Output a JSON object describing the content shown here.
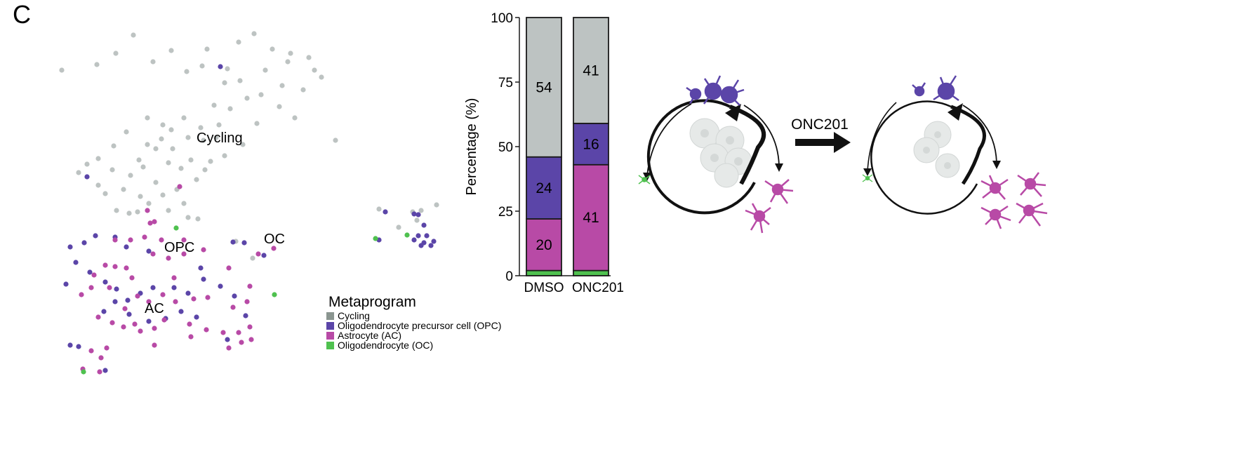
{
  "panel_letter": "C",
  "colors": {
    "cycling": "#bdc3c2",
    "opc": "#5b45a8",
    "ac": "#b84aa6",
    "oc": "#4fc14f",
    "legend_cycling": "#8a9590",
    "dark": "#1a1a1a"
  },
  "chart_data": [
    {
      "type": "scatter",
      "title": "",
      "xlabel": "",
      "ylabel": "",
      "cluster_labels": [
        "Cycling",
        "OPC",
        "OC",
        "AC"
      ],
      "legend": {
        "title": "Metaprogram",
        "items": [
          {
            "label": "Cycling",
            "key": "cycling"
          },
          {
            "label": "Oligodendrocyte precursor cell (OPC)",
            "key": "opc"
          },
          {
            "label": "Astrocyte (AC)",
            "key": "ac"
          },
          {
            "label": "Oligodendrocyte (OC)",
            "key": "oc"
          }
        ]
      },
      "series": [
        {
          "name": "Cycling",
          "key": "cycling",
          "points": [
            [
              88,
              100
            ],
            [
              138,
              92
            ],
            [
              165,
              76
            ],
            [
              190,
              50
            ],
            [
              218,
              88
            ],
            [
              244,
              72
            ],
            [
              266,
              102
            ],
            [
              295,
              70
            ],
            [
              340,
              60
            ],
            [
              362,
              48
            ],
            [
              388,
              70
            ],
            [
              410,
              88
            ],
            [
              440,
              82
            ],
            [
              458,
              110
            ],
            [
              372,
              135
            ],
            [
              342,
              115
            ],
            [
              398,
              152
            ],
            [
              420,
              168
            ],
            [
              328,
              155
            ],
            [
              305,
              150
            ],
            [
              478,
              200
            ],
            [
              312,
              178
            ],
            [
              262,
              168
            ],
            [
              244,
              185
            ],
            [
              230,
              198
            ],
            [
              210,
              206
            ],
            [
              198,
              228
            ],
            [
              186,
              250
            ],
            [
              222,
              212
            ],
            [
              246,
              212
            ],
            [
              268,
              196
            ],
            [
              290,
              200
            ],
            [
              300,
              230
            ],
            [
              280,
              256
            ],
            [
              258,
              240
            ],
            [
              240,
              232
            ],
            [
              222,
              260
            ],
            [
              200,
              280
            ],
            [
              176,
              270
            ],
            [
              160,
              242
            ],
            [
              140,
              226
            ],
            [
              124,
              234
            ],
            [
              112,
              246
            ],
            [
              150,
              276
            ],
            [
              166,
              300
            ],
            [
              184,
              304
            ],
            [
              212,
              290
            ],
            [
              240,
              300
            ],
            [
              262,
              290
            ],
            [
              180,
              188
            ],
            [
              210,
              168
            ],
            [
              162,
              208
            ],
            [
              140,
              264
            ],
            [
              196,
              302
            ],
            [
              232,
              278
            ],
            [
              268,
              310
            ],
            [
              282,
              312
            ],
            [
              336,
              344
            ],
            [
              360,
              368
            ],
            [
              378,
              100
            ],
            [
              352,
              140
            ],
            [
              414,
              76
            ],
            [
              324,
              98
            ],
            [
              288,
              94
            ],
            [
              402,
              122
            ],
            [
              448,
              100
            ],
            [
              432,
              128
            ],
            [
              366,
              176
            ],
            [
              320,
              118
            ],
            [
              232,
              178
            ],
            [
              204,
              238
            ],
            [
              252,
              270
            ],
            [
              272,
              228
            ],
            [
              292,
              242
            ],
            [
              320,
              222
            ],
            [
              346,
              206
            ],
            [
              308,
              196
            ],
            [
              286,
              182
            ],
            [
              540,
              298
            ],
            [
              588,
              302
            ],
            [
              600,
              300
            ],
            [
              622,
              292
            ],
            [
              594,
              314
            ],
            [
              568,
              324
            ]
          ]
        },
        {
          "name": "Oligodendrocyte precursor cell (OPC)",
          "key": "opc",
          "points": [
            [
              314,
              95
            ],
            [
              124,
              252
            ],
            [
              100,
              352
            ],
            [
              120,
              346
            ],
            [
              136,
              336
            ],
            [
              164,
              338
            ],
            [
              180,
              352
            ],
            [
              212,
              358
            ],
            [
              108,
              374
            ],
            [
              128,
              388
            ],
            [
              150,
              402
            ],
            [
              166,
              412
            ],
            [
              182,
              428
            ],
            [
              200,
              418
            ],
            [
              218,
              410
            ],
            [
              164,
              430
            ],
            [
              148,
              444
            ],
            [
              184,
              448
            ],
            [
              212,
              458
            ],
            [
              236,
              454
            ],
            [
              258,
              444
            ],
            [
              280,
              452
            ],
            [
              248,
              410
            ],
            [
              268,
              418
            ],
            [
              290,
              398
            ],
            [
              314,
              408
            ],
            [
              334,
              422
            ],
            [
              350,
              450
            ],
            [
              324,
              484
            ],
            [
              100,
              492
            ],
            [
              112,
              494
            ],
            [
              150,
              528
            ],
            [
              94,
              405
            ],
            [
              286,
              382
            ],
            [
              332,
              345
            ],
            [
              348,
              346
            ],
            [
              376,
              364
            ],
            [
              540,
              342
            ],
            [
              549,
              302
            ],
            [
              590,
              305
            ],
            [
              596,
              306
            ],
            [
              604,
              321
            ],
            [
              608,
              336
            ],
            [
              596,
              336
            ],
            [
              590,
              342
            ],
            [
              604,
              346
            ],
            [
              618,
              344
            ],
            [
              614,
              350
            ],
            [
              600,
              350
            ]
          ]
        },
        {
          "name": "Astrocyte (AC)",
          "key": "ac",
          "points": [
            [
              210,
              300
            ],
            [
              214,
              318
            ],
            [
              220,
              316
            ],
            [
              256,
              266
            ],
            [
              164,
              342
            ],
            [
              186,
              342
            ],
            [
              206,
              338
            ],
            [
              230,
              342
            ],
            [
              262,
              342
            ],
            [
              218,
              362
            ],
            [
              240,
              368
            ],
            [
              262,
              362
            ],
            [
              290,
              356
            ],
            [
              150,
              378
            ],
            [
              164,
              380
            ],
            [
              180,
              382
            ],
            [
              134,
              392
            ],
            [
              188,
              396
            ],
            [
              156,
              410
            ],
            [
              116,
              420
            ],
            [
              130,
              410
            ],
            [
              196,
              422
            ],
            [
              212,
              430
            ],
            [
              232,
              420
            ],
            [
              250,
              430
            ],
            [
              276,
              426
            ],
            [
              296,
              424
            ],
            [
              140,
              452
            ],
            [
              160,
              460
            ],
            [
              176,
              466
            ],
            [
              192,
              462
            ],
            [
              200,
              472
            ],
            [
              220,
              468
            ],
            [
              234,
              456
            ],
            [
              270,
              462
            ],
            [
              294,
              470
            ],
            [
              318,
              474
            ],
            [
              340,
              474
            ],
            [
              356,
              466
            ],
            [
              358,
              484
            ],
            [
              326,
              496
            ],
            [
              344,
              488
            ],
            [
              152,
              496
            ],
            [
              130,
              500
            ],
            [
              144,
              510
            ],
            [
              118,
              526
            ],
            [
              142,
              530
            ],
            [
              390,
              354
            ],
            [
              356,
              408
            ],
            [
              326,
              382
            ],
            [
              332,
              438
            ],
            [
              352,
              430
            ],
            [
              368,
              362
            ],
            [
              248,
              396
            ],
            [
              178,
              440
            ],
            [
              220,
              492
            ],
            [
              272,
              480
            ]
          ]
        },
        {
          "name": "Oligodendrocyte (OC)",
          "key": "oc",
          "points": [
            [
              251,
              325
            ],
            [
              391,
              420
            ],
            [
              535,
              340
            ],
            [
              580,
              335
            ],
            [
              119,
              530
            ]
          ]
        }
      ]
    },
    {
      "type": "bar",
      "stacked": true,
      "title": "",
      "xlabel": "",
      "ylabel": "Percentage (%)",
      "ylim": [
        0,
        100
      ],
      "yticks": [
        0,
        25,
        50,
        75,
        100
      ],
      "categories": [
        "DMSO",
        "ONC201"
      ],
      "stack_order_bottom_to_top": [
        "oc",
        "ac",
        "opc",
        "cycling"
      ],
      "series": [
        {
          "name": "Oligodendrocyte (OC)",
          "key": "oc",
          "values": [
            2,
            2
          ],
          "labels": [
            "",
            ""
          ]
        },
        {
          "name": "Astrocyte (AC)",
          "key": "ac",
          "values": [
            20,
            41
          ],
          "labels": [
            "20",
            "41"
          ]
        },
        {
          "name": "Oligodendrocyte precursor cell (OPC)",
          "key": "opc",
          "values": [
            24,
            16
          ],
          "labels": [
            "24",
            "16"
          ]
        },
        {
          "name": "Cycling",
          "key": "cycling",
          "values": [
            54,
            41
          ],
          "labels": [
            "54",
            "41"
          ]
        }
      ]
    }
  ],
  "schematic": {
    "arrow_label": "ONC201"
  }
}
